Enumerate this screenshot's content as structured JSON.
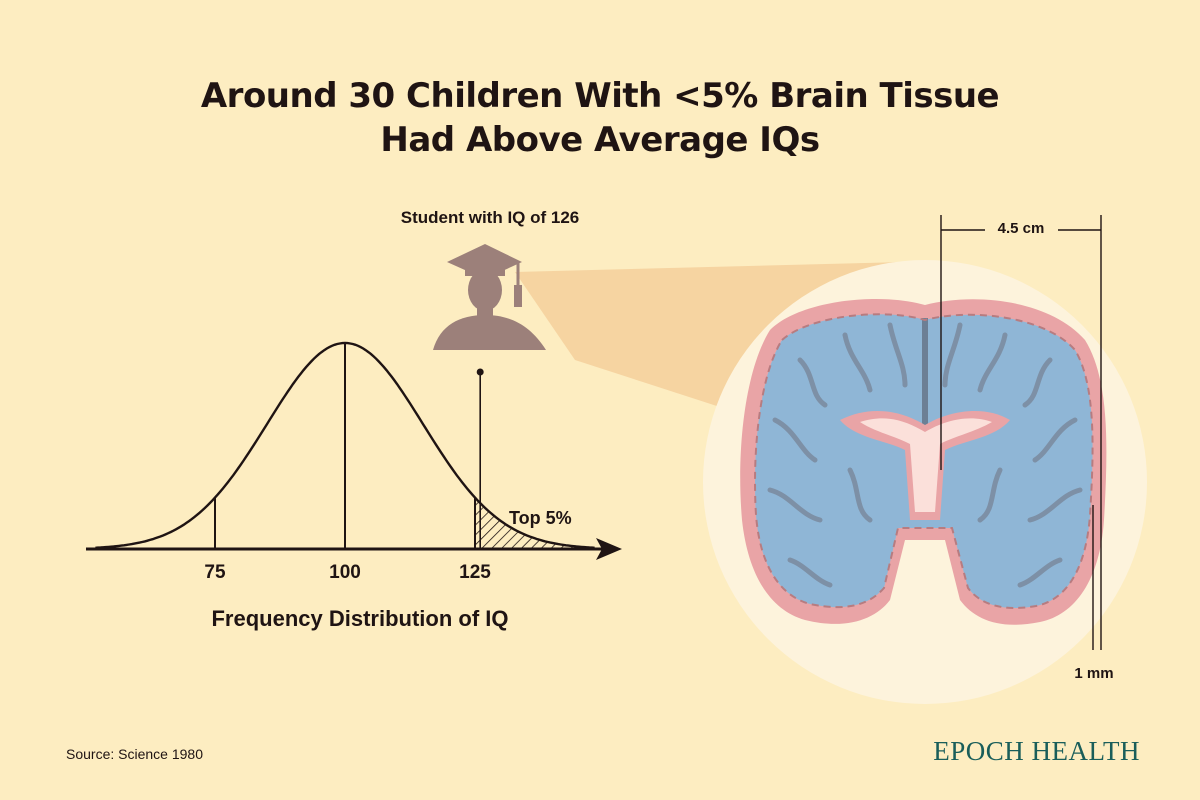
{
  "title": {
    "line1": "Around 30 Children With <5% Brain Tissue",
    "line2": "Had Above Average IQs"
  },
  "diagram": {
    "student_label": "Student with IQ of 126",
    "top_label": "Top 5%",
    "ticks": [
      "75",
      "100",
      "125"
    ],
    "axis_title": "Frequency Distribution of IQ",
    "student_iq": 126,
    "mean": 100,
    "sd": 15
  },
  "brain": {
    "measure_top": "4.5 cm",
    "measure_bottom": "1 mm"
  },
  "footer": {
    "source": "Source: Science 1980",
    "brand": "EPOCH HEALTH"
  },
  "colors": {
    "background": "#fdedc1",
    "text": "#1f1413",
    "brand": "#1a5e5a",
    "silhouette": "#9c807a",
    "cone": "#f5cf9b",
    "brain_circle": "#fdf3dc",
    "brain_fluid": "#8fb6d6",
    "brain_tissue": "#e9a4a6",
    "brain_fold": "#7d90a6"
  },
  "icons": [
    "graduate-silhouette-icon",
    "brain-scan-icon"
  ]
}
